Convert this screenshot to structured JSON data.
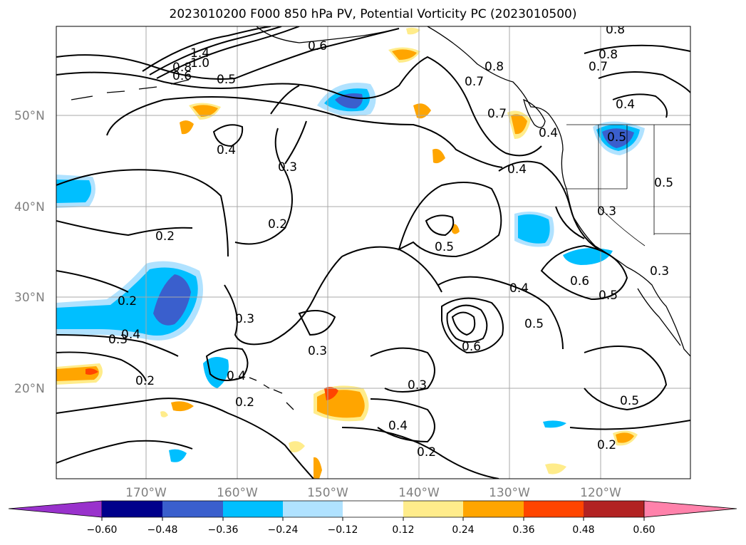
{
  "title": "2023010200 F000 850 hPa PV, Potential Vorticity PC (2023010500)",
  "lat_labels": [
    "50°N",
    "40°N",
    "30°N",
    "20°N"
  ],
  "lon_labels": [
    "170°W",
    "160°W",
    "150°W",
    "140°W",
    "130°W",
    "120°W"
  ],
  "contour_labels": [
    "1.4",
    "1.0",
    "0.8",
    "0.6",
    "0.5",
    "0.6",
    "0.7",
    "0.7",
    "0.8",
    "0.8",
    "0.8",
    "0.7",
    "0.4",
    "0.4",
    "0.5",
    "0.4",
    "0.4",
    "0.3",
    "0.2",
    "0.2",
    "0.2",
    "0.3",
    "0.3",
    "0.3",
    "0.2",
    "0.2",
    "0.4",
    "0.2",
    "0.5",
    "0.4",
    "0.5",
    "0.6",
    "0.6",
    "0.5",
    "0.3",
    "0.4",
    "0.5",
    "0.2",
    "0.3",
    "0.5",
    "0.3",
    "0.4"
  ],
  "colorbar": {
    "ticks": [
      "−0.60",
      "−0.48",
      "−0.36",
      "−0.24",
      "−0.12",
      "0.12",
      "0.24",
      "0.36",
      "0.48",
      "0.60"
    ],
    "colors": [
      "#9932CC",
      "#00008B",
      "#3A5FCD",
      "#00BFFF",
      "#B0E2FF",
      "#FFFFFF",
      "#FFEC8B",
      "#FFA500",
      "#FF4500",
      "#B22222",
      "#FF82AB"
    ]
  }
}
